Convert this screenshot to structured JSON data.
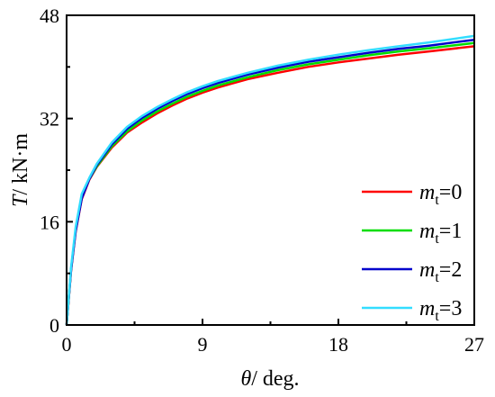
{
  "chart_data": {
    "type": "line",
    "xlabel": {
      "symbol": "θ",
      "unit": "/ deg."
    },
    "ylabel": {
      "symbol": "T",
      "unit": "/ kN·m"
    },
    "xlim": [
      0,
      27
    ],
    "ylim": [
      0,
      48
    ],
    "xticks": [
      0,
      9,
      18,
      27
    ],
    "yticks": [
      0,
      16,
      32,
      48
    ],
    "grid": false,
    "legend_position": "bottom-right",
    "x": [
      0,
      0.3,
      0.6,
      1,
      1.5,
      2,
      3,
      4,
      5,
      6,
      7,
      8,
      9,
      10,
      12,
      14,
      16,
      18,
      20,
      22,
      24,
      27
    ],
    "series": [
      {
        "name": {
          "base": "m",
          "sub": "t",
          "rest": "=0"
        },
        "color": "#ff0000",
        "values": [
          0,
          8.5,
          14.5,
          19.5,
          22.5,
          24.5,
          27.5,
          29.8,
          31.4,
          32.8,
          34,
          35.1,
          36,
          36.8,
          38.1,
          39.1,
          40,
          40.7,
          41.3,
          41.9,
          42.4,
          43.2
        ]
      },
      {
        "name": {
          "base": "m",
          "sub": "t",
          "rest": "=1"
        },
        "color": "#00dd00",
        "values": [
          0,
          8.7,
          14.8,
          19.8,
          22.6,
          24.6,
          27.7,
          30,
          31.7,
          33.1,
          34.3,
          35.4,
          36.3,
          37.1,
          38.4,
          39.5,
          40.4,
          41.1,
          41.8,
          42.4,
          42.9,
          43.7
        ]
      },
      {
        "name": {
          "base": "m",
          "sub": "t",
          "rest": "=2"
        },
        "color": "#0000cc",
        "values": [
          0,
          8.6,
          14.6,
          19.6,
          22.6,
          24.8,
          28,
          30.4,
          32.1,
          33.5,
          34.7,
          35.8,
          36.7,
          37.5,
          38.8,
          39.9,
          40.8,
          41.5,
          42.2,
          42.8,
          43.3,
          44.2
        ]
      },
      {
        "name": {
          "base": "m",
          "sub": "t",
          "rest": "=3"
        },
        "color": "#33ddff",
        "values": [
          0,
          9,
          15.2,
          20.3,
          22.8,
          25,
          28.3,
          30.7,
          32.4,
          33.8,
          35,
          36.1,
          37,
          37.8,
          39.1,
          40.2,
          41.1,
          41.9,
          42.6,
          43.2,
          43.8,
          44.8
        ]
      }
    ]
  }
}
